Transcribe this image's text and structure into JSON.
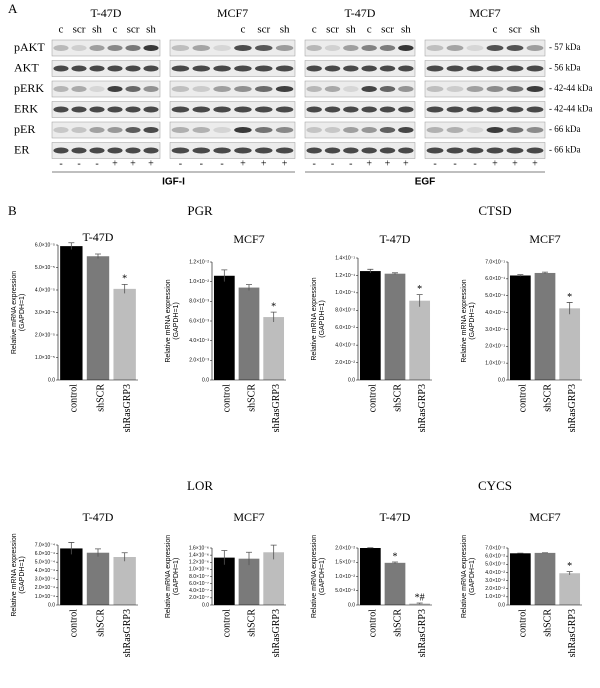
{
  "panel_a": {
    "label": "A",
    "blocks": [
      {
        "title": "T-47D",
        "lanes": [
          "c",
          "scr",
          "sh",
          "c",
          "scr",
          "sh"
        ]
      },
      {
        "title": "MCF7",
        "lanes": [
          "c",
          "scr",
          "sh"
        ]
      },
      {
        "title": "T-47D",
        "lanes": [
          "c",
          "scr",
          "sh",
          "c",
          "scr",
          "sh"
        ]
      },
      {
        "title": "MCF7",
        "lanes": [
          "c",
          "scr",
          "sh"
        ]
      }
    ],
    "rows": [
      "pAKT",
      "AKT",
      "pERK",
      "ERK",
      "pER",
      "ER"
    ],
    "sizes": [
      "- 57 kDa",
      "- 56 kDa",
      "- 42-44 kDa",
      "- 42-44 kDa",
      "- 66 kDa",
      "- 66 kDa"
    ],
    "signs": [
      "-",
      "-",
      "-",
      "+",
      "+",
      "+"
    ],
    "treatments": [
      "IGF-I",
      "EGF"
    ]
  },
  "panel_b": {
    "label": "B",
    "groups": [
      "PGR",
      "CTSD",
      "LOR",
      "CYCS"
    ]
  },
  "chart_data": [
    {
      "type": "bar",
      "title": "T-47D",
      "ylabel": [
        "Relative mRNA expression",
        "(GAPDH=1)"
      ],
      "categories": [
        "control",
        "shSCR",
        "shRasGRP3"
      ],
      "values": [
        5.95e-05,
        5.5e-05,
        4.05e-05
      ],
      "errors": [
        1.5e-06,
        1e-06,
        2e-06
      ],
      "value_annotations": [
        null,
        null,
        "*"
      ],
      "colors": [
        "#000000",
        "#7a7a7a",
        "#bdbdbd"
      ],
      "ylim": [
        0,
        6e-05
      ],
      "yticks": [
        {
          "value": 0,
          "label": "0.0"
        },
        {
          "value": 1e-05,
          "label": "1.0×10⁻⁵"
        },
        {
          "value": 2e-05,
          "label": "2.0×10⁻⁵"
        },
        {
          "value": 3e-05,
          "label": "3.0×10⁻⁵"
        },
        {
          "value": 4e-05,
          "label": "4.0×10⁻⁵"
        },
        {
          "value": 5e-05,
          "label": "5.0×10⁻⁵"
        },
        {
          "value": 6e-05,
          "label": "6.0×10⁻⁵"
        }
      ]
    },
    {
      "type": "bar",
      "title": "MCF7",
      "ylabel": [
        "Relative mRNA expression",
        "(GAPDH=1)"
      ],
      "categories": [
        "control",
        "shSCR",
        "shRasGRP3"
      ],
      "values": [
        0.0106,
        0.0094,
        0.0064
      ],
      "errors": [
        0.0006,
        0.0003,
        0.0005
      ],
      "value_annotations": [
        null,
        null,
        "*"
      ],
      "colors": [
        "#000000",
        "#7a7a7a",
        "#bdbdbd"
      ],
      "ylim": [
        0,
        0.012
      ],
      "yticks": [
        {
          "value": 0,
          "label": "0.0"
        },
        {
          "value": 0.002,
          "label": "2.0×10⁻³"
        },
        {
          "value": 0.004,
          "label": "4.0×10⁻³"
        },
        {
          "value": 0.006,
          "label": "6.0×10⁻³"
        },
        {
          "value": 0.008,
          "label": "8.0×10⁻³"
        },
        {
          "value": 0.01,
          "label": "1.0×10⁻²"
        },
        {
          "value": 0.012,
          "label": "1.2×10⁻²"
        }
      ]
    },
    {
      "type": "bar",
      "title": "T-47D",
      "ylabel": [
        "Relative mRNA expression",
        "(GAPDH=1)"
      ],
      "categories": [
        "control",
        "shSCR",
        "shRasGRP3"
      ],
      "values": [
        0.125,
        0.122,
        0.091
      ],
      "errors": [
        0.002,
        0.001,
        0.007
      ],
      "value_annotations": [
        null,
        null,
        "*"
      ],
      "colors": [
        "#000000",
        "#7a7a7a",
        "#bdbdbd"
      ],
      "ylim": [
        0,
        0.14
      ],
      "yticks": [
        {
          "value": 0,
          "label": "0.0"
        },
        {
          "value": 0.02,
          "label": "2.0×10⁻²"
        },
        {
          "value": 0.04,
          "label": "4.0×10⁻²"
        },
        {
          "value": 0.06,
          "label": "6.0×10⁻²"
        },
        {
          "value": 0.08,
          "label": "8.0×10⁻²"
        },
        {
          "value": 0.1,
          "label": "1.0×10⁻¹"
        },
        {
          "value": 0.12,
          "label": "1.2×10⁻¹"
        },
        {
          "value": 0.14,
          "label": "1.4×10⁻¹"
        }
      ]
    },
    {
      "type": "bar",
      "title": "MCF7",
      "ylabel": [
        "Relative mRNA expression",
        "(GAPDH=1)"
      ],
      "categories": [
        "control",
        "shSCR",
        "shRasGRP3"
      ],
      "values": [
        0.62,
        0.635,
        0.425
      ],
      "errors": [
        0.005,
        0.005,
        0.035
      ],
      "value_annotations": [
        null,
        null,
        "*"
      ],
      "colors": [
        "#000000",
        "#7a7a7a",
        "#bdbdbd"
      ],
      "ylim": [
        0,
        0.7
      ],
      "yticks": [
        {
          "value": 0,
          "label": "0.0"
        },
        {
          "value": 0.1,
          "label": "1.0×10⁻¹"
        },
        {
          "value": 0.2,
          "label": "2.0×10⁻¹"
        },
        {
          "value": 0.3,
          "label": "3.0×10⁻¹"
        },
        {
          "value": 0.4,
          "label": "4.0×10⁻¹"
        },
        {
          "value": 0.5,
          "label": "5.0×10⁻¹"
        },
        {
          "value": 0.6,
          "label": "6.0×10⁻¹"
        },
        {
          "value": 0.7,
          "label": "7.0×10⁻¹"
        }
      ]
    },
    {
      "type": "bar",
      "title": "T-47D",
      "ylabel": [
        "Relative mRNA expression",
        "(GAPDH=1)"
      ],
      "categories": [
        "control",
        "shSCR",
        "shRasGRP3"
      ],
      "values": [
        0.00066,
        0.00061,
        0.00056
      ],
      "errors": [
        7e-05,
        4.5e-05,
        5e-05
      ],
      "value_annotations": [
        null,
        null,
        null
      ],
      "colors": [
        "#000000",
        "#7a7a7a",
        "#bdbdbd"
      ],
      "ylim": [
        0,
        0.0007
      ],
      "yticks": [
        {
          "value": 0,
          "label": "0.0"
        },
        {
          "value": 0.0001,
          "label": "1.0×10⁻⁴"
        },
        {
          "value": 0.0002,
          "label": "2.0×10⁻⁴"
        },
        {
          "value": 0.0003,
          "label": "3.0×10⁻⁴"
        },
        {
          "value": 0.0004,
          "label": "4.0×10⁻⁴"
        },
        {
          "value": 0.0005,
          "label": "5.0×10⁻⁴"
        },
        {
          "value": 0.0006,
          "label": "6.0×10⁻⁴"
        },
        {
          "value": 0.0007,
          "label": "7.0×10⁻⁴"
        }
      ]
    },
    {
      "type": "bar",
      "title": "MCF7",
      "ylabel": [
        "Relative mRNA expression",
        "(GAPDH=1)"
      ],
      "categories": [
        "control",
        "shSCR",
        "shRasGRP3"
      ],
      "values": [
        1.33e-06,
        1.3e-06,
        1.48e-06
      ],
      "errors": [
        2e-07,
        1.8e-07,
        2e-07
      ],
      "value_annotations": [
        null,
        null,
        null
      ],
      "colors": [
        "#000000",
        "#7a7a7a",
        "#bdbdbd"
      ],
      "ylim": [
        0,
        1.6e-06
      ],
      "yticks": [
        {
          "value": 0,
          "label": "0.0"
        },
        {
          "value": 2e-07,
          "label": "2.0×10⁻⁷"
        },
        {
          "value": 4e-07,
          "label": "4.0×10⁻⁷"
        },
        {
          "value": 6e-07,
          "label": "6.0×10⁻⁷"
        },
        {
          "value": 8e-07,
          "label": "8.0×10⁻⁷"
        },
        {
          "value": 1e-06,
          "label": "1.0×10⁻⁶"
        },
        {
          "value": 1.2e-06,
          "label": "1.2×10⁻⁶"
        },
        {
          "value": 1.4e-06,
          "label": "1.4×10⁻⁶"
        },
        {
          "value": 1.6e-06,
          "label": "1.6×10⁻⁶"
        }
      ]
    },
    {
      "type": "bar",
      "title": "T-47D",
      "ylabel": [
        "Relative mRNA expression",
        "(GAPDH=1)"
      ],
      "categories": [
        "control",
        "shSCR",
        "shRasGRP3"
      ],
      "values": [
        0.02,
        0.0148,
        0.0005
      ],
      "errors": [
        0.0001,
        0.0003,
        0.0002
      ],
      "value_annotations": [
        null,
        "*",
        "*#"
      ],
      "colors": [
        "#000000",
        "#7a7a7a",
        "#bdbdbd"
      ],
      "ylim": [
        0,
        0.02
      ],
      "yticks": [
        {
          "value": 0,
          "label": "0.0"
        },
        {
          "value": 0.005,
          "label": "5.0×10⁻³"
        },
        {
          "value": 0.01,
          "label": "1.0×10⁻²"
        },
        {
          "value": 0.015,
          "label": "1.5×10⁻²"
        },
        {
          "value": 0.02,
          "label": "2.0×10⁻²"
        }
      ]
    },
    {
      "type": "bar",
      "title": "MCF7",
      "ylabel": [
        "Relative mRNA expression",
        "(GAPDH=1)"
      ],
      "categories": [
        "control",
        "shSCR",
        "shRasGRP3"
      ],
      "values": [
        0.0635,
        0.064,
        0.039
      ],
      "errors": [
        0.0002,
        0.0002,
        0.002
      ],
      "value_annotations": [
        null,
        null,
        "*"
      ],
      "colors": [
        "#000000",
        "#7a7a7a",
        "#bdbdbd"
      ],
      "ylim": [
        0,
        0.07
      ],
      "yticks": [
        {
          "value": 0,
          "label": "0.0"
        },
        {
          "value": 0.01,
          "label": "1.0×10⁻²"
        },
        {
          "value": 0.02,
          "label": "2.0×10⁻²"
        },
        {
          "value": 0.03,
          "label": "3.0×10⁻²"
        },
        {
          "value": 0.04,
          "label": "4.0×10⁻²"
        },
        {
          "value": 0.05,
          "label": "5.0×10⁻²"
        },
        {
          "value": 0.06,
          "label": "6.0×10⁻²"
        },
        {
          "value": 0.07,
          "label": "7.0×10⁻²"
        }
      ]
    }
  ]
}
